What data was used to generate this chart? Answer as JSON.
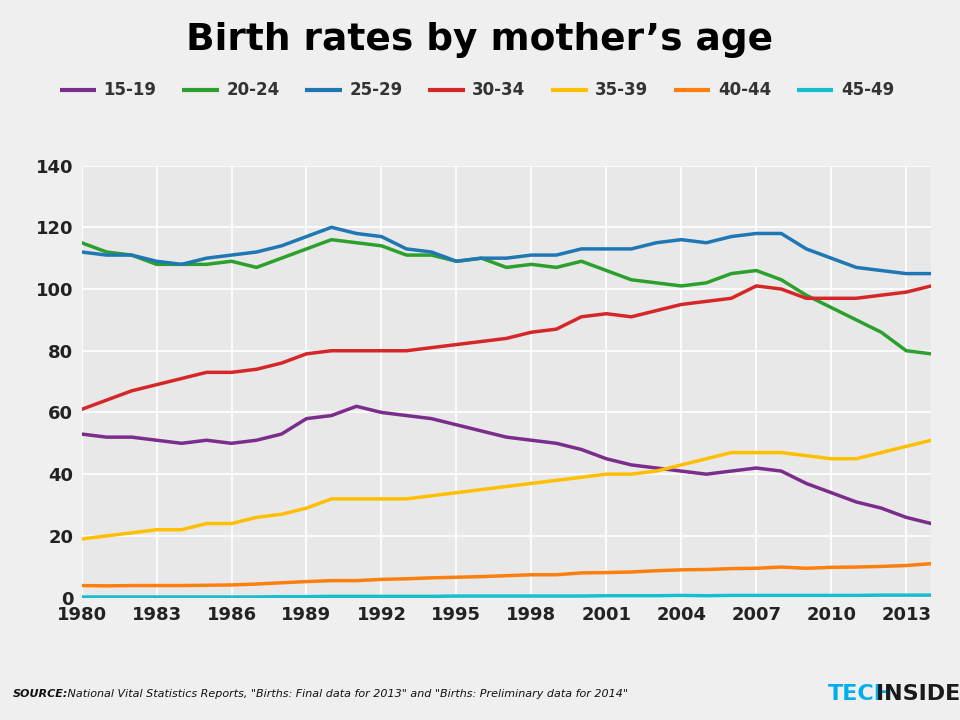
{
  "title": "Birth rates by mother’s age",
  "source_label": "SOURCE:",
  "source_rest": " National Vital Statistics Reports, \"Births: Final data for 2013\" and \"Births: Preliminary data for 2014\"",
  "background_color": "#efefef",
  "plot_background_color": "#e8e8e8",
  "grid_color": "#ffffff",
  "years": [
    1980,
    1981,
    1982,
    1983,
    1984,
    1985,
    1986,
    1987,
    1988,
    1989,
    1990,
    1991,
    1992,
    1993,
    1994,
    1995,
    1996,
    1997,
    1998,
    1999,
    2000,
    2001,
    2002,
    2003,
    2004,
    2005,
    2006,
    2007,
    2008,
    2009,
    2010,
    2011,
    2012,
    2013,
    2014
  ],
  "series": [
    {
      "label": "15-19",
      "color": "#7B2D8B",
      "linewidth": 2.5,
      "values": [
        53,
        52,
        52,
        51,
        50,
        51,
        50,
        51,
        53,
        58,
        59,
        62,
        60,
        59,
        58,
        56,
        54,
        52,
        51,
        50,
        48,
        45,
        43,
        42,
        41,
        40,
        41,
        42,
        41,
        37,
        34,
        31,
        29,
        26,
        24
      ]
    },
    {
      "label": "20-24",
      "color": "#2ca02c",
      "linewidth": 2.5,
      "values": [
        115,
        112,
        111,
        108,
        108,
        108,
        109,
        107,
        110,
        113,
        116,
        115,
        114,
        111,
        111,
        109,
        110,
        107,
        108,
        107,
        109,
        106,
        103,
        102,
        101,
        102,
        105,
        106,
        103,
        98,
        94,
        90,
        86,
        80,
        79
      ]
    },
    {
      "label": "25-29",
      "color": "#1f77b4",
      "linewidth": 2.5,
      "values": [
        112,
        111,
        111,
        109,
        108,
        110,
        111,
        112,
        114,
        117,
        120,
        118,
        117,
        113,
        112,
        109,
        110,
        110,
        111,
        111,
        113,
        113,
        113,
        115,
        116,
        115,
        117,
        118,
        118,
        113,
        110,
        107,
        106,
        105,
        105
      ]
    },
    {
      "label": "30-34",
      "color": "#d62728",
      "linewidth": 2.5,
      "values": [
        61,
        64,
        67,
        69,
        71,
        73,
        73,
        74,
        76,
        79,
        80,
        80,
        80,
        80,
        81,
        82,
        83,
        84,
        86,
        87,
        91,
        92,
        91,
        93,
        95,
        96,
        97,
        101,
        100,
        97,
        97,
        97,
        98,
        99,
        101
      ]
    },
    {
      "label": "35-39",
      "color": "#ffbf00",
      "linewidth": 2.5,
      "values": [
        19,
        20,
        21,
        22,
        22,
        24,
        24,
        26,
        27,
        29,
        32,
        32,
        32,
        32,
        33,
        34,
        35,
        36,
        37,
        38,
        39,
        40,
        40,
        41,
        43,
        45,
        47,
        47,
        47,
        46,
        45,
        45,
        47,
        49,
        51
      ]
    },
    {
      "label": "40-44",
      "color": "#ff7f0e",
      "linewidth": 2.5,
      "values": [
        3.9,
        3.8,
        3.9,
        3.9,
        3.9,
        4.0,
        4.1,
        4.4,
        4.8,
        5.2,
        5.5,
        5.5,
        5.9,
        6.1,
        6.4,
        6.6,
        6.8,
        7.1,
        7.4,
        7.4,
        8.0,
        8.1,
        8.3,
        8.7,
        9.0,
        9.1,
        9.4,
        9.5,
        9.9,
        9.5,
        9.8,
        9.9,
        10.1,
        10.4,
        11
      ]
    },
    {
      "label": "45-49",
      "color": "#17becf",
      "linewidth": 2.5,
      "values": [
        0.2,
        0.2,
        0.2,
        0.2,
        0.2,
        0.2,
        0.2,
        0.2,
        0.3,
        0.3,
        0.4,
        0.4,
        0.4,
        0.4,
        0.4,
        0.5,
        0.5,
        0.5,
        0.5,
        0.5,
        0.5,
        0.6,
        0.6,
        0.6,
        0.7,
        0.6,
        0.7,
        0.7,
        0.7,
        0.7,
        0.7,
        0.7,
        0.8,
        0.8,
        0.8
      ]
    }
  ],
  "ylim": [
    0,
    140
  ],
  "yticks": [
    0,
    20,
    40,
    60,
    80,
    100,
    120,
    140
  ],
  "xticks": [
    1980,
    1983,
    1986,
    1989,
    1992,
    1995,
    1998,
    2001,
    2004,
    2007,
    2010,
    2013
  ],
  "footer_bg": "#c8c8c8",
  "tech_color": "#00aeef",
  "insider_color": "#1a1a1a",
  "fig_width": 9.6,
  "fig_height": 7.2,
  "dpi": 100
}
